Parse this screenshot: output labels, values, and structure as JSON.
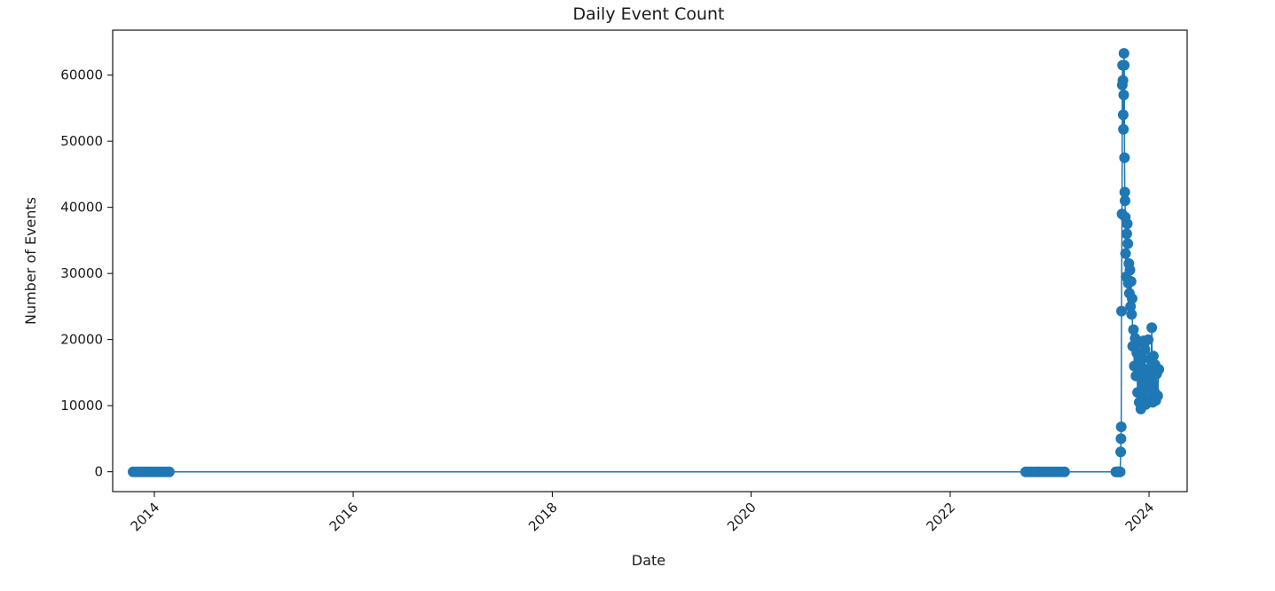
{
  "chart_data": {
    "type": "line",
    "title": "Daily Event Count",
    "xlabel": "Date",
    "ylabel": "Number of Events",
    "xlim": [
      "2013-08-01",
      "2024-05-20"
    ],
    "ylim": [
      -3000,
      66800
    ],
    "xticks": [
      "2014",
      "2016",
      "2018",
      "2020",
      "2022",
      "2024"
    ],
    "yticks": [
      0,
      10000,
      20000,
      30000,
      40000,
      50000,
      60000
    ],
    "grid": false,
    "legend": "none",
    "series": [
      {
        "color": "#1f77b4",
        "marker": "circle",
        "points": [
          [
            "2013-10-15",
            0
          ],
          [
            "2013-10-25",
            0
          ],
          [
            "2013-11-05",
            0
          ],
          [
            "2013-11-15",
            0
          ],
          [
            "2013-11-25",
            0
          ],
          [
            "2013-12-05",
            0
          ],
          [
            "2013-12-15",
            0
          ],
          [
            "2013-12-25",
            0
          ],
          [
            "2014-01-05",
            0
          ],
          [
            "2014-01-15",
            0
          ],
          [
            "2014-01-25",
            0
          ],
          [
            "2014-02-05",
            0
          ],
          [
            "2014-02-15",
            0
          ],
          [
            "2014-02-25",
            0
          ],
          [
            "2022-10-05",
            0
          ],
          [
            "2022-10-15",
            0
          ],
          [
            "2022-10-25",
            0
          ],
          [
            "2022-11-05",
            0
          ],
          [
            "2022-11-15",
            0
          ],
          [
            "2022-11-25",
            0
          ],
          [
            "2022-12-05",
            0
          ],
          [
            "2022-12-15",
            0
          ],
          [
            "2022-12-25",
            0
          ],
          [
            "2023-01-05",
            0
          ],
          [
            "2023-01-15",
            0
          ],
          [
            "2023-01-25",
            0
          ],
          [
            "2023-02-05",
            0
          ],
          [
            "2023-02-15",
            0
          ],
          [
            "2023-02-25",
            0
          ],
          [
            "2023-09-01",
            0
          ],
          [
            "2023-09-05",
            0
          ],
          [
            "2023-09-08",
            0
          ],
          [
            "2023-09-11",
            0
          ],
          [
            "2023-09-14",
            0
          ],
          [
            "2023-09-17",
            0
          ],
          [
            "2023-09-19",
            3000
          ],
          [
            "2023-09-20",
            5000
          ],
          [
            "2023-09-21",
            6800
          ],
          [
            "2023-09-22",
            24300
          ],
          [
            "2023-09-24",
            39000
          ],
          [
            "2023-09-25",
            58500
          ],
          [
            "2023-09-26",
            61500
          ],
          [
            "2023-09-27",
            59200
          ],
          [
            "2023-09-28",
            54000
          ],
          [
            "2023-09-29",
            51800
          ],
          [
            "2023-09-30",
            57000
          ],
          [
            "2023-10-01",
            63300
          ],
          [
            "2023-10-02",
            61500
          ],
          [
            "2023-10-03",
            47500
          ],
          [
            "2023-10-04",
            42300
          ],
          [
            "2023-10-05",
            41000
          ],
          [
            "2023-10-06",
            38500
          ],
          [
            "2023-10-07",
            33000
          ],
          [
            "2023-10-09",
            29500
          ],
          [
            "2023-10-11",
            36000
          ],
          [
            "2023-10-13",
            37500
          ],
          [
            "2023-10-15",
            34500
          ],
          [
            "2023-10-17",
            28500
          ],
          [
            "2023-10-19",
            31500
          ],
          [
            "2023-10-21",
            27000
          ],
          [
            "2023-10-23",
            30500
          ],
          [
            "2023-10-25",
            25000
          ],
          [
            "2023-10-27",
            28800
          ],
          [
            "2023-10-29",
            23800
          ],
          [
            "2023-10-31",
            26200
          ],
          [
            "2023-11-02",
            19000
          ],
          [
            "2023-11-05",
            21500
          ],
          [
            "2023-11-08",
            16000
          ],
          [
            "2023-11-11",
            20200
          ],
          [
            "2023-11-14",
            14500
          ],
          [
            "2023-11-17",
            18000
          ],
          [
            "2023-11-20",
            12000
          ],
          [
            "2023-11-23",
            19500
          ],
          [
            "2023-11-26",
            10500
          ],
          [
            "2023-11-29",
            16000
          ],
          [
            "2023-12-02",
            9500
          ],
          [
            "2023-12-05",
            17500
          ],
          [
            "2023-12-08",
            11000
          ],
          [
            "2023-12-11",
            19800
          ],
          [
            "2023-12-14",
            12500
          ],
          [
            "2023-12-17",
            18500
          ],
          [
            "2023-12-20",
            10200
          ],
          [
            "2023-12-23",
            15500
          ],
          [
            "2023-12-26",
            13000
          ],
          [
            "2023-12-29",
            20000
          ],
          [
            "2024-01-02",
            11200
          ],
          [
            "2024-01-05",
            17000
          ],
          [
            "2024-01-08",
            14000
          ],
          [
            "2024-01-11",
            21800
          ],
          [
            "2024-01-14",
            10500
          ],
          [
            "2024-01-17",
            17500
          ],
          [
            "2024-01-20",
            12200
          ],
          [
            "2024-01-23",
            16200
          ],
          [
            "2024-01-26",
            10800
          ],
          [
            "2024-01-29",
            14800
          ],
          [
            "2024-02-02",
            11500
          ],
          [
            "2024-02-06",
            15500
          ]
        ]
      }
    ]
  }
}
